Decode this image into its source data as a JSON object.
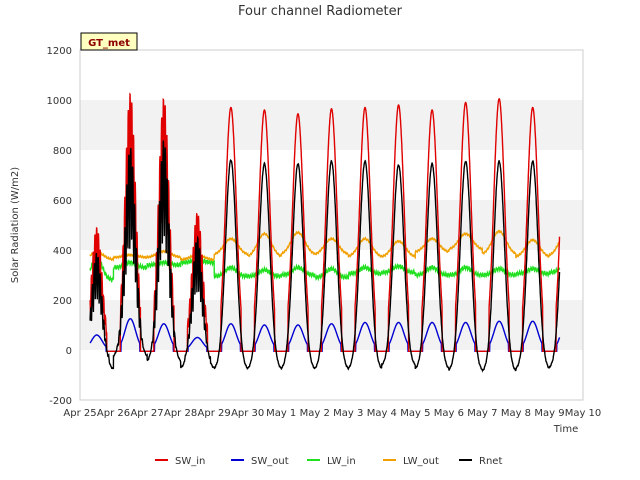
{
  "chart_data": {
    "type": "line",
    "title": "Four channel Radiometer",
    "xlabel": "Time",
    "ylabel": "Solar Radiation (W/m2)",
    "ylim": [
      -200,
      1200
    ],
    "yticks": [
      -200,
      0,
      200,
      400,
      600,
      800,
      1000,
      1200
    ],
    "xlim": [
      0,
      15
    ],
    "xticks": [
      {
        "x": 0,
        "label": "Apr 25"
      },
      {
        "x": 1,
        "label": "Apr 26"
      },
      {
        "x": 2,
        "label": "Apr 27"
      },
      {
        "x": 3,
        "label": "Apr 28"
      },
      {
        "x": 4,
        "label": "Apr 29"
      },
      {
        "x": 5,
        "label": "Apr 30"
      },
      {
        "x": 6,
        "label": "May 1"
      },
      {
        "x": 7,
        "label": "May 2"
      },
      {
        "x": 8,
        "label": "May 3"
      },
      {
        "x": 9,
        "label": "May 4"
      },
      {
        "x": 10,
        "label": "May 5"
      },
      {
        "x": 11,
        "label": "May 6"
      },
      {
        "x": 12,
        "label": "May 7"
      },
      {
        "x": 13,
        "label": "May 8"
      },
      {
        "x": 14,
        "label": "May 9"
      },
      {
        "x": 15,
        "label": "May 10"
      }
    ],
    "data_range_days": [
      0.3,
      14.3
    ],
    "grid_bands": true,
    "legend_position": "bottom",
    "annotation": "GT_met",
    "daily_peaks": {
      "days": [
        "Apr 25",
        "Apr 26",
        "Apr 27",
        "Apr 28",
        "Apr 29",
        "Apr 30",
        "May 1",
        "May 2",
        "May 3",
        "May 4",
        "May 5",
        "May 6",
        "May 7",
        "May 8",
        "May 9"
      ],
      "SW_in": [
        490,
        1030,
        1010,
        550,
        970,
        960,
        945,
        965,
        970,
        980,
        960,
        990,
        1005,
        970,
        990
      ],
      "SW_out": [
        60,
        125,
        105,
        50,
        105,
        100,
        100,
        105,
        110,
        110,
        110,
        110,
        115,
        115,
        110
      ],
      "LW_in_night": [
        280,
        330,
        340,
        350,
        295,
        295,
        300,
        290,
        305,
        310,
        300,
        300,
        300,
        305,
        310
      ],
      "LW_in_day": [
        370,
        350,
        350,
        360,
        330,
        320,
        330,
        325,
        330,
        335,
        330,
        330,
        325,
        325,
        345
      ],
      "LW_out_night": [
        360,
        370,
        370,
        360,
        380,
        370,
        380,
        380,
        370,
        370,
        390,
        400,
        380,
        370,
        375
      ],
      "LW_out_day": [
        390,
        380,
        395,
        380,
        445,
        465,
        470,
        445,
        445,
        435,
        445,
        465,
        475,
        440,
        470
      ],
      "Rnet": [
        390,
        810,
        840,
        450,
        760,
        745,
        745,
        755,
        755,
        740,
        745,
        755,
        755,
        755,
        775
      ],
      "Rnet_night": [
        -80,
        -30,
        -50,
        -75,
        -80,
        -80,
        -80,
        -80,
        -80,
        -65,
        -80,
        -85,
        -90,
        -80,
        -75
      ]
    },
    "series": [
      {
        "name": "SW_in",
        "color": "#e00000"
      },
      {
        "name": "SW_out",
        "color": "#0000d0"
      },
      {
        "name": "LW_in",
        "color": "#20e020"
      },
      {
        "name": "LW_out",
        "color": "#f0a000"
      },
      {
        "name": "Rnet",
        "color": "#000000"
      }
    ]
  }
}
